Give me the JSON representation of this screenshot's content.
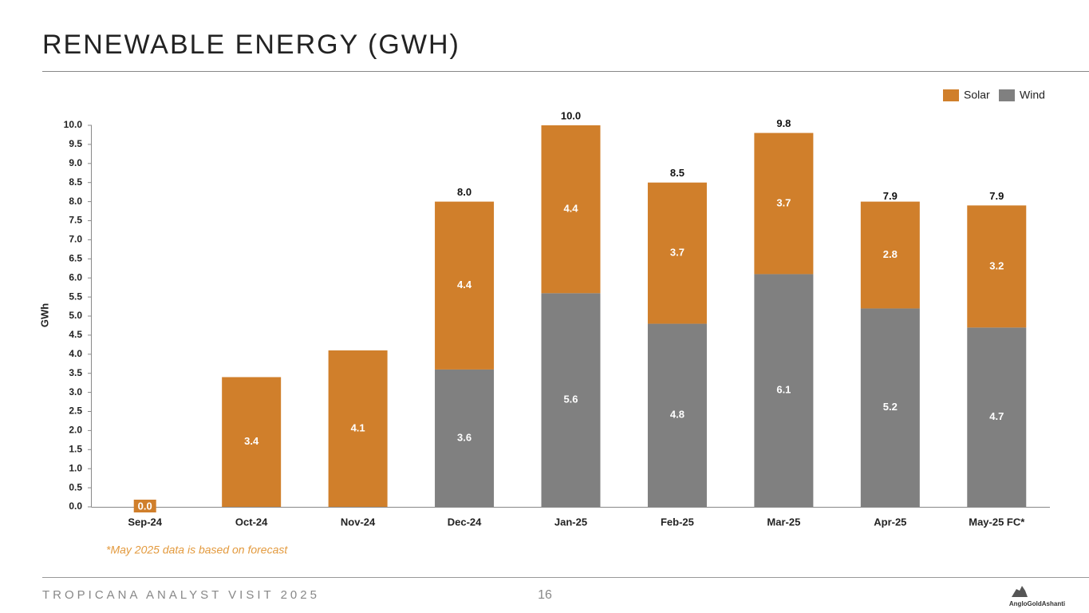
{
  "chart_data": {
    "type": "stacked-bar",
    "title": "RENEWABLE ENERGY (GWH)",
    "y_label": "GWh",
    "note": "*May 2025 data is based on forecast",
    "categories": [
      "Sep-24",
      "Oct-24",
      "Nov-24",
      "Dec-24",
      "Jan-25",
      "Feb-25",
      "Mar-25",
      "Apr-25",
      "May-25 FC*"
    ],
    "series": [
      {
        "name": "Solar",
        "color": "#d07f2b",
        "values": [
          0,
          3.4,
          4.1,
          4.4,
          4.4,
          3.7,
          3.7,
          2.8,
          3.2
        ],
        "value_labels": [
          "0.0",
          "3.4",
          "4.1",
          "4.4",
          "4.4",
          "3.7",
          "3.7",
          "2.8",
          "3.2"
        ]
      },
      {
        "name": "Wind",
        "color": "#808080",
        "values": [
          null,
          null,
          null,
          3.6,
          5.6,
          4.8,
          6.1,
          5.2,
          4.7
        ]
      }
    ],
    "totals": {
      "values": [
        null,
        null,
        null,
        8,
        10,
        8.5,
        9.8,
        7.9,
        7.9
      ],
      "value_labels": [
        null,
        null,
        null,
        "8.0",
        "10.0",
        "8.5",
        "9.8",
        "7.9",
        "7.9"
      ]
    },
    "ylim": [
      0,
      10
    ],
    "yticks": [
      {
        "value": 0,
        "label": "0.0"
      },
      0.5,
      {
        "value": 1,
        "label": "1.0"
      },
      1.5,
      {
        "value": 2,
        "label": "2.0"
      },
      2.5,
      {
        "value": 3,
        "label": "3.0"
      },
      3.5,
      {
        "value": 4,
        "label": "4.0"
      },
      4.5,
      {
        "value": 5,
        "label": "5.0"
      },
      5.5,
      {
        "value": 6,
        "label": "6.0"
      },
      6.5,
      {
        "value": 7,
        "label": "7.0"
      },
      7.5,
      {
        "value": 8,
        "label": "8.0"
      },
      8.5,
      {
        "value": 9,
        "label": "9.0"
      },
      9.5,
      {
        "value": 10,
        "label": "10.0"
      }
    ],
    "legend": "top-right",
    "grid": false
  },
  "footer": {
    "text": "TROPICANA ANALYST VISIT 2025",
    "page_number": "16",
    "logo": "AngloGoldAshanti"
  }
}
